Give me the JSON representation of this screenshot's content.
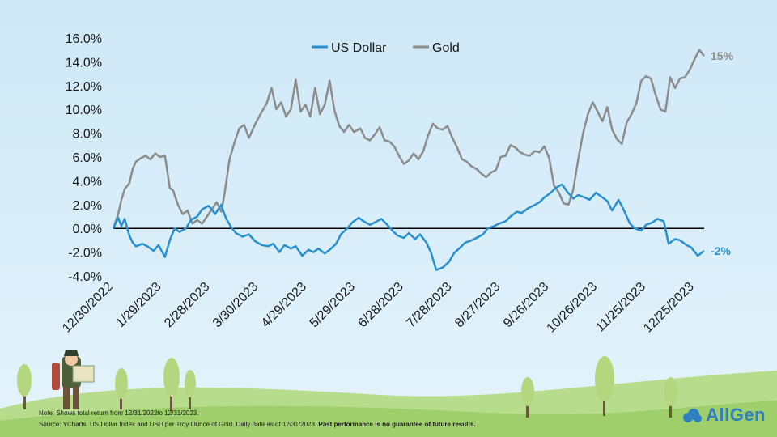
{
  "colors": {
    "us_dollar": "#2a8fcf",
    "gold": "#8c8c8c",
    "zero_line": "#000000",
    "grass": "#9fcf6a",
    "logo": "#2f7fc1"
  },
  "footer": {
    "note": "Note: Shows total return from 12/31/2022to 12/31/2023.",
    "source": "Source: YCharts. US Dollar Index and USD per Troy Ounce of Gold. Daily data as of 12/31/2023.",
    "disclaimer": "Past performance is no guarantee of future  results."
  },
  "logo": {
    "text": "AllGen",
    "icon": "cloud-icon"
  },
  "chart_data": {
    "type": "line",
    "title": "",
    "xlabel": "",
    "ylabel": "",
    "ylim": [
      -4,
      16
    ],
    "y_ticks": [
      -4,
      -2,
      0,
      2,
      4,
      6,
      8,
      10,
      12,
      14,
      16
    ],
    "y_tick_labels": [
      "-4.0%",
      "-2.0%",
      "0.0%",
      "2.0%",
      "4.0%",
      "6.0%",
      "8.0%",
      "10.0%",
      "12.0%",
      "14.0%",
      "16.0%"
    ],
    "xlim": [
      "2022-12-30",
      "2023-12-31"
    ],
    "x_ticks": [
      "2022-12-30",
      "2023-01-29",
      "2023-02-28",
      "2023-03-30",
      "2023-04-29",
      "2023-05-29",
      "2023-06-28",
      "2023-07-28",
      "2023-08-27",
      "2023-09-26",
      "2023-10-26",
      "2023-11-25",
      "2023-12-25"
    ],
    "x_tick_labels": [
      "12/30/2022",
      "1/29/2023",
      "2/28/2023",
      "3/30/2023",
      "4/29/2023",
      "5/29/2023",
      "6/28/2023",
      "7/28/2023",
      "8/27/2023",
      "9/26/2023",
      "10/26/2023",
      "11/25/2023",
      "12/25/2023"
    ],
    "legend": {
      "placement": "top-center"
    },
    "grid": false,
    "end_labels": [
      {
        "series": "Gold",
        "text": "15%"
      },
      {
        "series": "US Dollar",
        "text": "-2%"
      }
    ],
    "series": [
      {
        "name": "US Dollar",
        "x": [
          "2022-12-30",
          "2023-01-02",
          "2023-01-04",
          "2023-01-06",
          "2023-01-09",
          "2023-01-11",
          "2023-01-13",
          "2023-01-17",
          "2023-01-20",
          "2023-01-24",
          "2023-01-27",
          "2023-01-31",
          "2023-02-03",
          "2023-02-06",
          "2023-02-09",
          "2023-02-13",
          "2023-02-16",
          "2023-02-20",
          "2023-02-23",
          "2023-02-27",
          "2023-03-01",
          "2023-03-03",
          "2023-03-07",
          "2023-03-08",
          "2023-03-10",
          "2023-03-13",
          "2023-03-16",
          "2023-03-20",
          "2023-03-24",
          "2023-03-28",
          "2023-04-01",
          "2023-04-05",
          "2023-04-08",
          "2023-04-12",
          "2023-04-15",
          "2023-04-19",
          "2023-04-22",
          "2023-04-26",
          "2023-04-30",
          "2023-05-03",
          "2023-05-06",
          "2023-05-10",
          "2023-05-13",
          "2023-05-17",
          "2023-05-20",
          "2023-05-24",
          "2023-05-27",
          "2023-05-31",
          "2023-06-03",
          "2023-06-07",
          "2023-06-10",
          "2023-06-14",
          "2023-06-17",
          "2023-06-21",
          "2023-06-24",
          "2023-06-28",
          "2023-07-01",
          "2023-07-05",
          "2023-07-08",
          "2023-07-12",
          "2023-07-15",
          "2023-07-18",
          "2023-07-22",
          "2023-07-26",
          "2023-07-29",
          "2023-08-02",
          "2023-08-05",
          "2023-08-09",
          "2023-08-12",
          "2023-08-16",
          "2023-08-19",
          "2023-08-23",
          "2023-08-26",
          "2023-08-30",
          "2023-09-02",
          "2023-09-06",
          "2023-09-09",
          "2023-09-13",
          "2023-09-16",
          "2023-09-20",
          "2023-09-23",
          "2023-09-27",
          "2023-09-30",
          "2023-10-04",
          "2023-10-07",
          "2023-10-11",
          "2023-10-14",
          "2023-10-18",
          "2023-10-21",
          "2023-10-25",
          "2023-10-28",
          "2023-11-01",
          "2023-11-04",
          "2023-11-08",
          "2023-11-11",
          "2023-11-15",
          "2023-11-18",
          "2023-11-22",
          "2023-11-25",
          "2023-11-29",
          "2023-12-02",
          "2023-12-06",
          "2023-12-09",
          "2023-12-13",
          "2023-12-16",
          "2023-12-20",
          "2023-12-23",
          "2023-12-27",
          "2023-12-31"
        ],
        "values": [
          0.0,
          0.9,
          0.2,
          0.8,
          -0.6,
          -1.2,
          -1.5,
          -1.3,
          -1.5,
          -1.9,
          -1.4,
          -2.4,
          -1.0,
          0.0,
          -0.3,
          0.0,
          0.7,
          1.0,
          1.6,
          1.9,
          1.6,
          1.2,
          2.0,
          1.5,
          0.8,
          0.1,
          -0.4,
          -0.7,
          -0.5,
          -1.1,
          -1.4,
          -1.5,
          -1.3,
          -2.0,
          -1.4,
          -1.7,
          -1.5,
          -2.3,
          -1.8,
          -2.0,
          -1.7,
          -2.1,
          -1.8,
          -1.3,
          -0.5,
          0.0,
          0.5,
          0.9,
          0.6,
          0.3,
          0.5,
          0.8,
          0.4,
          -0.2,
          -0.6,
          -0.8,
          -0.4,
          -0.9,
          -0.5,
          -1.2,
          -2.1,
          -3.5,
          -3.3,
          -2.8,
          -2.1,
          -1.6,
          -1.2,
          -1.0,
          -0.8,
          -0.5,
          0.0,
          0.2,
          0.4,
          0.6,
          1.0,
          1.4,
          1.3,
          1.7,
          1.9,
          2.2,
          2.6,
          3.0,
          3.4,
          3.7,
          3.1,
          2.5,
          2.8,
          2.6,
          2.4,
          3.0,
          2.7,
          2.3,
          1.5,
          2.4,
          1.6,
          0.4,
          0.0,
          -0.2,
          0.3,
          0.5,
          0.8,
          0.6,
          -1.3,
          -0.9,
          -1.0,
          -1.4,
          -1.6,
          -2.3,
          -1.9
        ]
      },
      {
        "name": "Gold",
        "x": [
          "2022-12-30",
          "2023-01-02",
          "2023-01-04",
          "2023-01-06",
          "2023-01-09",
          "2023-01-11",
          "2023-01-13",
          "2023-01-16",
          "2023-01-19",
          "2023-01-22",
          "2023-01-25",
          "2023-01-28",
          "2023-01-31",
          "2023-02-03",
          "2023-02-05",
          "2023-02-08",
          "2023-02-11",
          "2023-02-14",
          "2023-02-17",
          "2023-02-20",
          "2023-02-23",
          "2023-02-26",
          "2023-03-01",
          "2023-03-04",
          "2023-03-07",
          "2023-03-09",
          "2023-03-12",
          "2023-03-15",
          "2023-03-18",
          "2023-03-21",
          "2023-03-24",
          "2023-03-28",
          "2023-04-01",
          "2023-04-04",
          "2023-04-07",
          "2023-04-10",
          "2023-04-13",
          "2023-04-16",
          "2023-04-19",
          "2023-04-22",
          "2023-04-25",
          "2023-04-28",
          "2023-05-01",
          "2023-05-04",
          "2023-05-07",
          "2023-05-10",
          "2023-05-13",
          "2023-05-16",
          "2023-05-19",
          "2023-05-22",
          "2023-05-25",
          "2023-05-28",
          "2023-06-01",
          "2023-06-04",
          "2023-06-07",
          "2023-06-10",
          "2023-06-13",
          "2023-06-16",
          "2023-06-19",
          "2023-06-22",
          "2023-06-25",
          "2023-06-28",
          "2023-07-01",
          "2023-07-04",
          "2023-07-07",
          "2023-07-10",
          "2023-07-13",
          "2023-07-16",
          "2023-07-19",
          "2023-07-22",
          "2023-07-25",
          "2023-07-28",
          "2023-07-31",
          "2023-08-03",
          "2023-08-06",
          "2023-08-09",
          "2023-08-12",
          "2023-08-15",
          "2023-08-18",
          "2023-08-21",
          "2023-08-24",
          "2023-08-27",
          "2023-08-30",
          "2023-09-02",
          "2023-09-05",
          "2023-09-08",
          "2023-09-11",
          "2023-09-14",
          "2023-09-17",
          "2023-09-20",
          "2023-09-23",
          "2023-09-26",
          "2023-09-29",
          "2023-10-02",
          "2023-10-05",
          "2023-10-08",
          "2023-10-11",
          "2023-10-14",
          "2023-10-17",
          "2023-10-20",
          "2023-10-23",
          "2023-10-26",
          "2023-10-29",
          "2023-11-01",
          "2023-11-04",
          "2023-11-07",
          "2023-11-10",
          "2023-11-13",
          "2023-11-16",
          "2023-11-19",
          "2023-11-22",
          "2023-11-25",
          "2023-11-28",
          "2023-12-01",
          "2023-12-04",
          "2023-12-07",
          "2023-12-10",
          "2023-12-13",
          "2023-12-16",
          "2023-12-19",
          "2023-12-22",
          "2023-12-25",
          "2023-12-28",
          "2023-12-31"
        ],
        "values": [
          0.0,
          1.2,
          2.4,
          3.3,
          3.8,
          5.0,
          5.6,
          5.9,
          6.1,
          5.8,
          6.3,
          6.0,
          6.1,
          3.4,
          3.2,
          2.0,
          1.2,
          1.5,
          0.4,
          0.7,
          0.4,
          1.0,
          1.6,
          2.2,
          1.4,
          3.0,
          5.8,
          7.2,
          8.4,
          8.7,
          7.6,
          8.8,
          9.8,
          10.5,
          11.8,
          10.0,
          10.6,
          9.4,
          10.0,
          12.5,
          9.8,
          10.4,
          9.4,
          11.8,
          9.6,
          10.4,
          12.4,
          9.9,
          8.6,
          8.1,
          8.7,
          8.1,
          8.4,
          7.6,
          7.4,
          7.9,
          8.5,
          7.4,
          7.3,
          6.9,
          6.1,
          5.4,
          5.7,
          6.3,
          5.8,
          6.5,
          7.8,
          8.8,
          8.4,
          8.3,
          8.6,
          7.6,
          6.8,
          5.8,
          5.6,
          5.2,
          5.0,
          4.6,
          4.3,
          4.7,
          4.9,
          6.0,
          6.1,
          7.0,
          6.8,
          6.4,
          6.2,
          6.1,
          6.5,
          6.4,
          6.9,
          5.9,
          3.6,
          3.0,
          2.1,
          2.0,
          3.3,
          5.8,
          8.0,
          9.6,
          10.6,
          9.8,
          9.0,
          10.2,
          8.3,
          7.5,
          7.1,
          8.9,
          9.6,
          10.5,
          12.4,
          12.8,
          12.6,
          11.2,
          10.0,
          9.8,
          12.7,
          11.8,
          12.6,
          12.7,
          13.3,
          14.2,
          15.0,
          14.5
        ]
      }
    ]
  }
}
